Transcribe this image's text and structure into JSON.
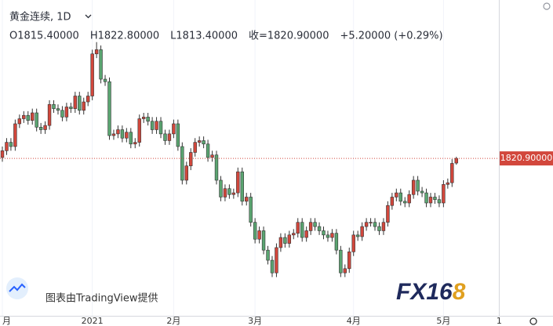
{
  "chart_data": {
    "type": "candlestick",
    "symbol": "黄金连续, 1D",
    "legend_texts": [
      "O1815.40000",
      "H1822.80000",
      "L1813.40000",
      "收=1820.90000",
      "+5.20000 (+0.29%)"
    ],
    "up_color": "#d2473c",
    "down_color": "#5aa571",
    "ylim": [
      1634,
      2009
    ],
    "x_labels": [
      {
        "index": 0,
        "label": "月"
      },
      {
        "index": 21,
        "label": "2021"
      },
      {
        "index": 40,
        "label": "2月"
      },
      {
        "index": 59,
        "label": "3月"
      },
      {
        "index": 82,
        "label": "4月"
      },
      {
        "index": 103,
        "label": "5月"
      },
      {
        "index": 116,
        "label": "1"
      }
    ],
    "last_price_label": "1820.90000",
    "watermark": "图表由TradingView提供",
    "logo": {
      "text": "FX16",
      "accent": "8"
    },
    "ohlc": [
      [
        1822,
        1835,
        1817,
        1830
      ],
      [
        1830,
        1845,
        1825,
        1840
      ],
      [
        1840,
        1845,
        1830,
        1835
      ],
      [
        1835,
        1867,
        1830,
        1862
      ],
      [
        1862,
        1873,
        1857,
        1868
      ],
      [
        1868,
        1877,
        1863,
        1872
      ],
      [
        1872,
        1877,
        1861,
        1866
      ],
      [
        1866,
        1880,
        1861,
        1875
      ],
      [
        1875,
        1880,
        1853,
        1858
      ],
      [
        1858,
        1863,
        1850,
        1855
      ],
      [
        1855,
        1865,
        1850,
        1860
      ],
      [
        1860,
        1890,
        1855,
        1885
      ],
      [
        1885,
        1890,
        1875,
        1880
      ],
      [
        1880,
        1885,
        1873,
        1878
      ],
      [
        1878,
        1883,
        1865,
        1870
      ],
      [
        1870,
        1887,
        1865,
        1882
      ],
      [
        1882,
        1887,
        1875,
        1880
      ],
      [
        1880,
        1900,
        1875,
        1895
      ],
      [
        1895,
        1900,
        1873,
        1878
      ],
      [
        1878,
        1893,
        1873,
        1888
      ],
      [
        1888,
        1900,
        1883,
        1895
      ],
      [
        1895,
        1950,
        1890,
        1945
      ],
      [
        1945,
        1959,
        1940,
        1950
      ],
      [
        1950,
        1955,
        1910,
        1915
      ],
      [
        1915,
        1920,
        1907,
        1912
      ],
      [
        1912,
        1917,
        1843,
        1848
      ],
      [
        1848,
        1855,
        1843,
        1850
      ],
      [
        1850,
        1860,
        1845,
        1855
      ],
      [
        1855,
        1860,
        1840,
        1845
      ],
      [
        1845,
        1857,
        1840,
        1852
      ],
      [
        1852,
        1857,
        1833,
        1838
      ],
      [
        1838,
        1845,
        1833,
        1840
      ],
      [
        1840,
        1873,
        1835,
        1868
      ],
      [
        1868,
        1875,
        1863,
        1870
      ],
      [
        1870,
        1875,
        1860,
        1865
      ],
      [
        1865,
        1870,
        1850,
        1855
      ],
      [
        1855,
        1870,
        1850,
        1865
      ],
      [
        1865,
        1870,
        1845,
        1850
      ],
      [
        1850,
        1855,
        1837,
        1842
      ],
      [
        1842,
        1855,
        1837,
        1850
      ],
      [
        1850,
        1867,
        1845,
        1862
      ],
      [
        1862,
        1867,
        1830,
        1835
      ],
      [
        1835,
        1840,
        1790,
        1795
      ],
      [
        1795,
        1817,
        1790,
        1812
      ],
      [
        1812,
        1833,
        1807,
        1828
      ],
      [
        1828,
        1845,
        1823,
        1840
      ],
      [
        1840,
        1847,
        1835,
        1842
      ],
      [
        1842,
        1847,
        1833,
        1838
      ],
      [
        1838,
        1843,
        1817,
        1822
      ],
      [
        1822,
        1830,
        1817,
        1825
      ],
      [
        1825,
        1830,
        1790,
        1795
      ],
      [
        1795,
        1800,
        1770,
        1775
      ],
      [
        1775,
        1790,
        1770,
        1785
      ],
      [
        1785,
        1790,
        1773,
        1778
      ],
      [
        1778,
        1785,
        1773,
        1780
      ],
      [
        1780,
        1810,
        1775,
        1805
      ],
      [
        1805,
        1810,
        1765,
        1770
      ],
      [
        1770,
        1780,
        1765,
        1775
      ],
      [
        1775,
        1780,
        1740,
        1745
      ],
      [
        1745,
        1750,
        1720,
        1725
      ],
      [
        1725,
        1740,
        1720,
        1735
      ],
      [
        1735,
        1740,
        1707,
        1712
      ],
      [
        1712,
        1717,
        1695,
        1700
      ],
      [
        1700,
        1705,
        1680,
        1685
      ],
      [
        1685,
        1720,
        1680,
        1715
      ],
      [
        1715,
        1732,
        1710,
        1727
      ],
      [
        1727,
        1732,
        1715,
        1720
      ],
      [
        1720,
        1735,
        1715,
        1730
      ],
      [
        1730,
        1737,
        1725,
        1732
      ],
      [
        1732,
        1750,
        1727,
        1745
      ],
      [
        1745,
        1750,
        1722,
        1727
      ],
      [
        1727,
        1740,
        1722,
        1735
      ],
      [
        1735,
        1750,
        1730,
        1745
      ],
      [
        1745,
        1750,
        1735,
        1740
      ],
      [
        1740,
        1745,
        1730,
        1735
      ],
      [
        1735,
        1740,
        1725,
        1730
      ],
      [
        1730,
        1735,
        1722,
        1727
      ],
      [
        1727,
        1737,
        1722,
        1732
      ],
      [
        1732,
        1737,
        1707,
        1712
      ],
      [
        1712,
        1717,
        1680,
        1685
      ],
      [
        1685,
        1695,
        1680,
        1690
      ],
      [
        1690,
        1715,
        1685,
        1710
      ],
      [
        1710,
        1735,
        1705,
        1730
      ],
      [
        1730,
        1735,
        1723,
        1728
      ],
      [
        1728,
        1745,
        1723,
        1740
      ],
      [
        1740,
        1750,
        1735,
        1745
      ],
      [
        1745,
        1750,
        1740,
        1745
      ],
      [
        1745,
        1750,
        1735,
        1740
      ],
      [
        1740,
        1745,
        1730,
        1735
      ],
      [
        1735,
        1750,
        1730,
        1745
      ],
      [
        1745,
        1770,
        1740,
        1765
      ],
      [
        1765,
        1780,
        1760,
        1775
      ],
      [
        1775,
        1785,
        1770,
        1780
      ],
      [
        1780,
        1785,
        1765,
        1770
      ],
      [
        1770,
        1775,
        1763,
        1768
      ],
      [
        1768,
        1783,
        1763,
        1778
      ],
      [
        1778,
        1800,
        1773,
        1795
      ],
      [
        1795,
        1800,
        1777,
        1782
      ],
      [
        1782,
        1787,
        1775,
        1780
      ],
      [
        1780,
        1785,
        1763,
        1768
      ],
      [
        1768,
        1780,
        1763,
        1775
      ],
      [
        1775,
        1780,
        1767,
        1772
      ],
      [
        1772,
        1777,
        1763,
        1768
      ],
      [
        1768,
        1795,
        1763,
        1790
      ],
      [
        1790,
        1797,
        1785,
        1792
      ],
      [
        1792,
        1820,
        1787,
        1815
      ],
      [
        1815.4,
        1822.8,
        1813.4,
        1820.9
      ]
    ]
  }
}
